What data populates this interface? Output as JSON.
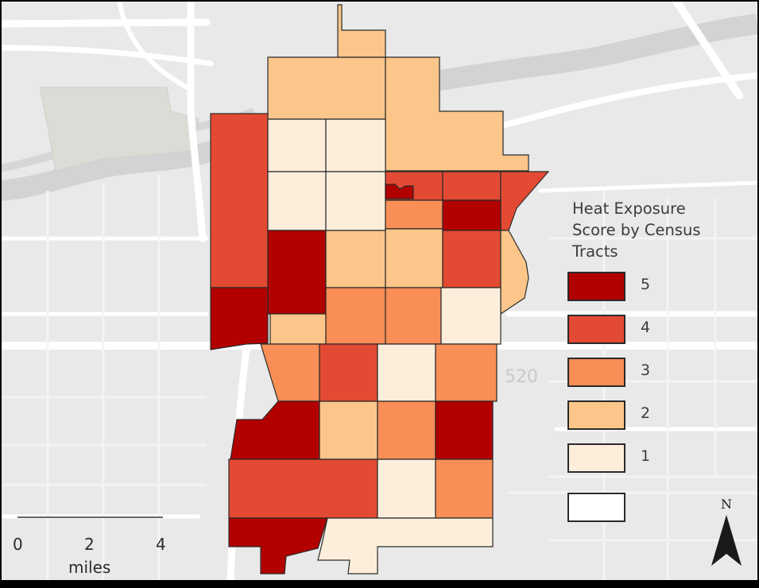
{
  "map": {
    "road_label": "520",
    "tract_fill_colors": {
      "1": "#fdeedb",
      "2": "#fcc68a",
      "3": "#f98e57",
      "4": "#e34a33",
      "5": "#b20000"
    }
  },
  "legend": {
    "title": "Heat Exposure\nScore by Census\nTracts",
    "items": [
      {
        "label": "5",
        "color": "#b20000"
      },
      {
        "label": "4",
        "color": "#e34a33"
      },
      {
        "label": "3",
        "color": "#f98e57"
      },
      {
        "label": "2",
        "color": "#fcc68a"
      },
      {
        "label": "1",
        "color": "#fdeedb"
      },
      {
        "label": "",
        "color": "#ffffff"
      }
    ]
  },
  "scale_bar": {
    "ticks": [
      "0",
      "2",
      "4"
    ],
    "unit": "miles"
  },
  "north_arrow": {
    "label": "N"
  }
}
